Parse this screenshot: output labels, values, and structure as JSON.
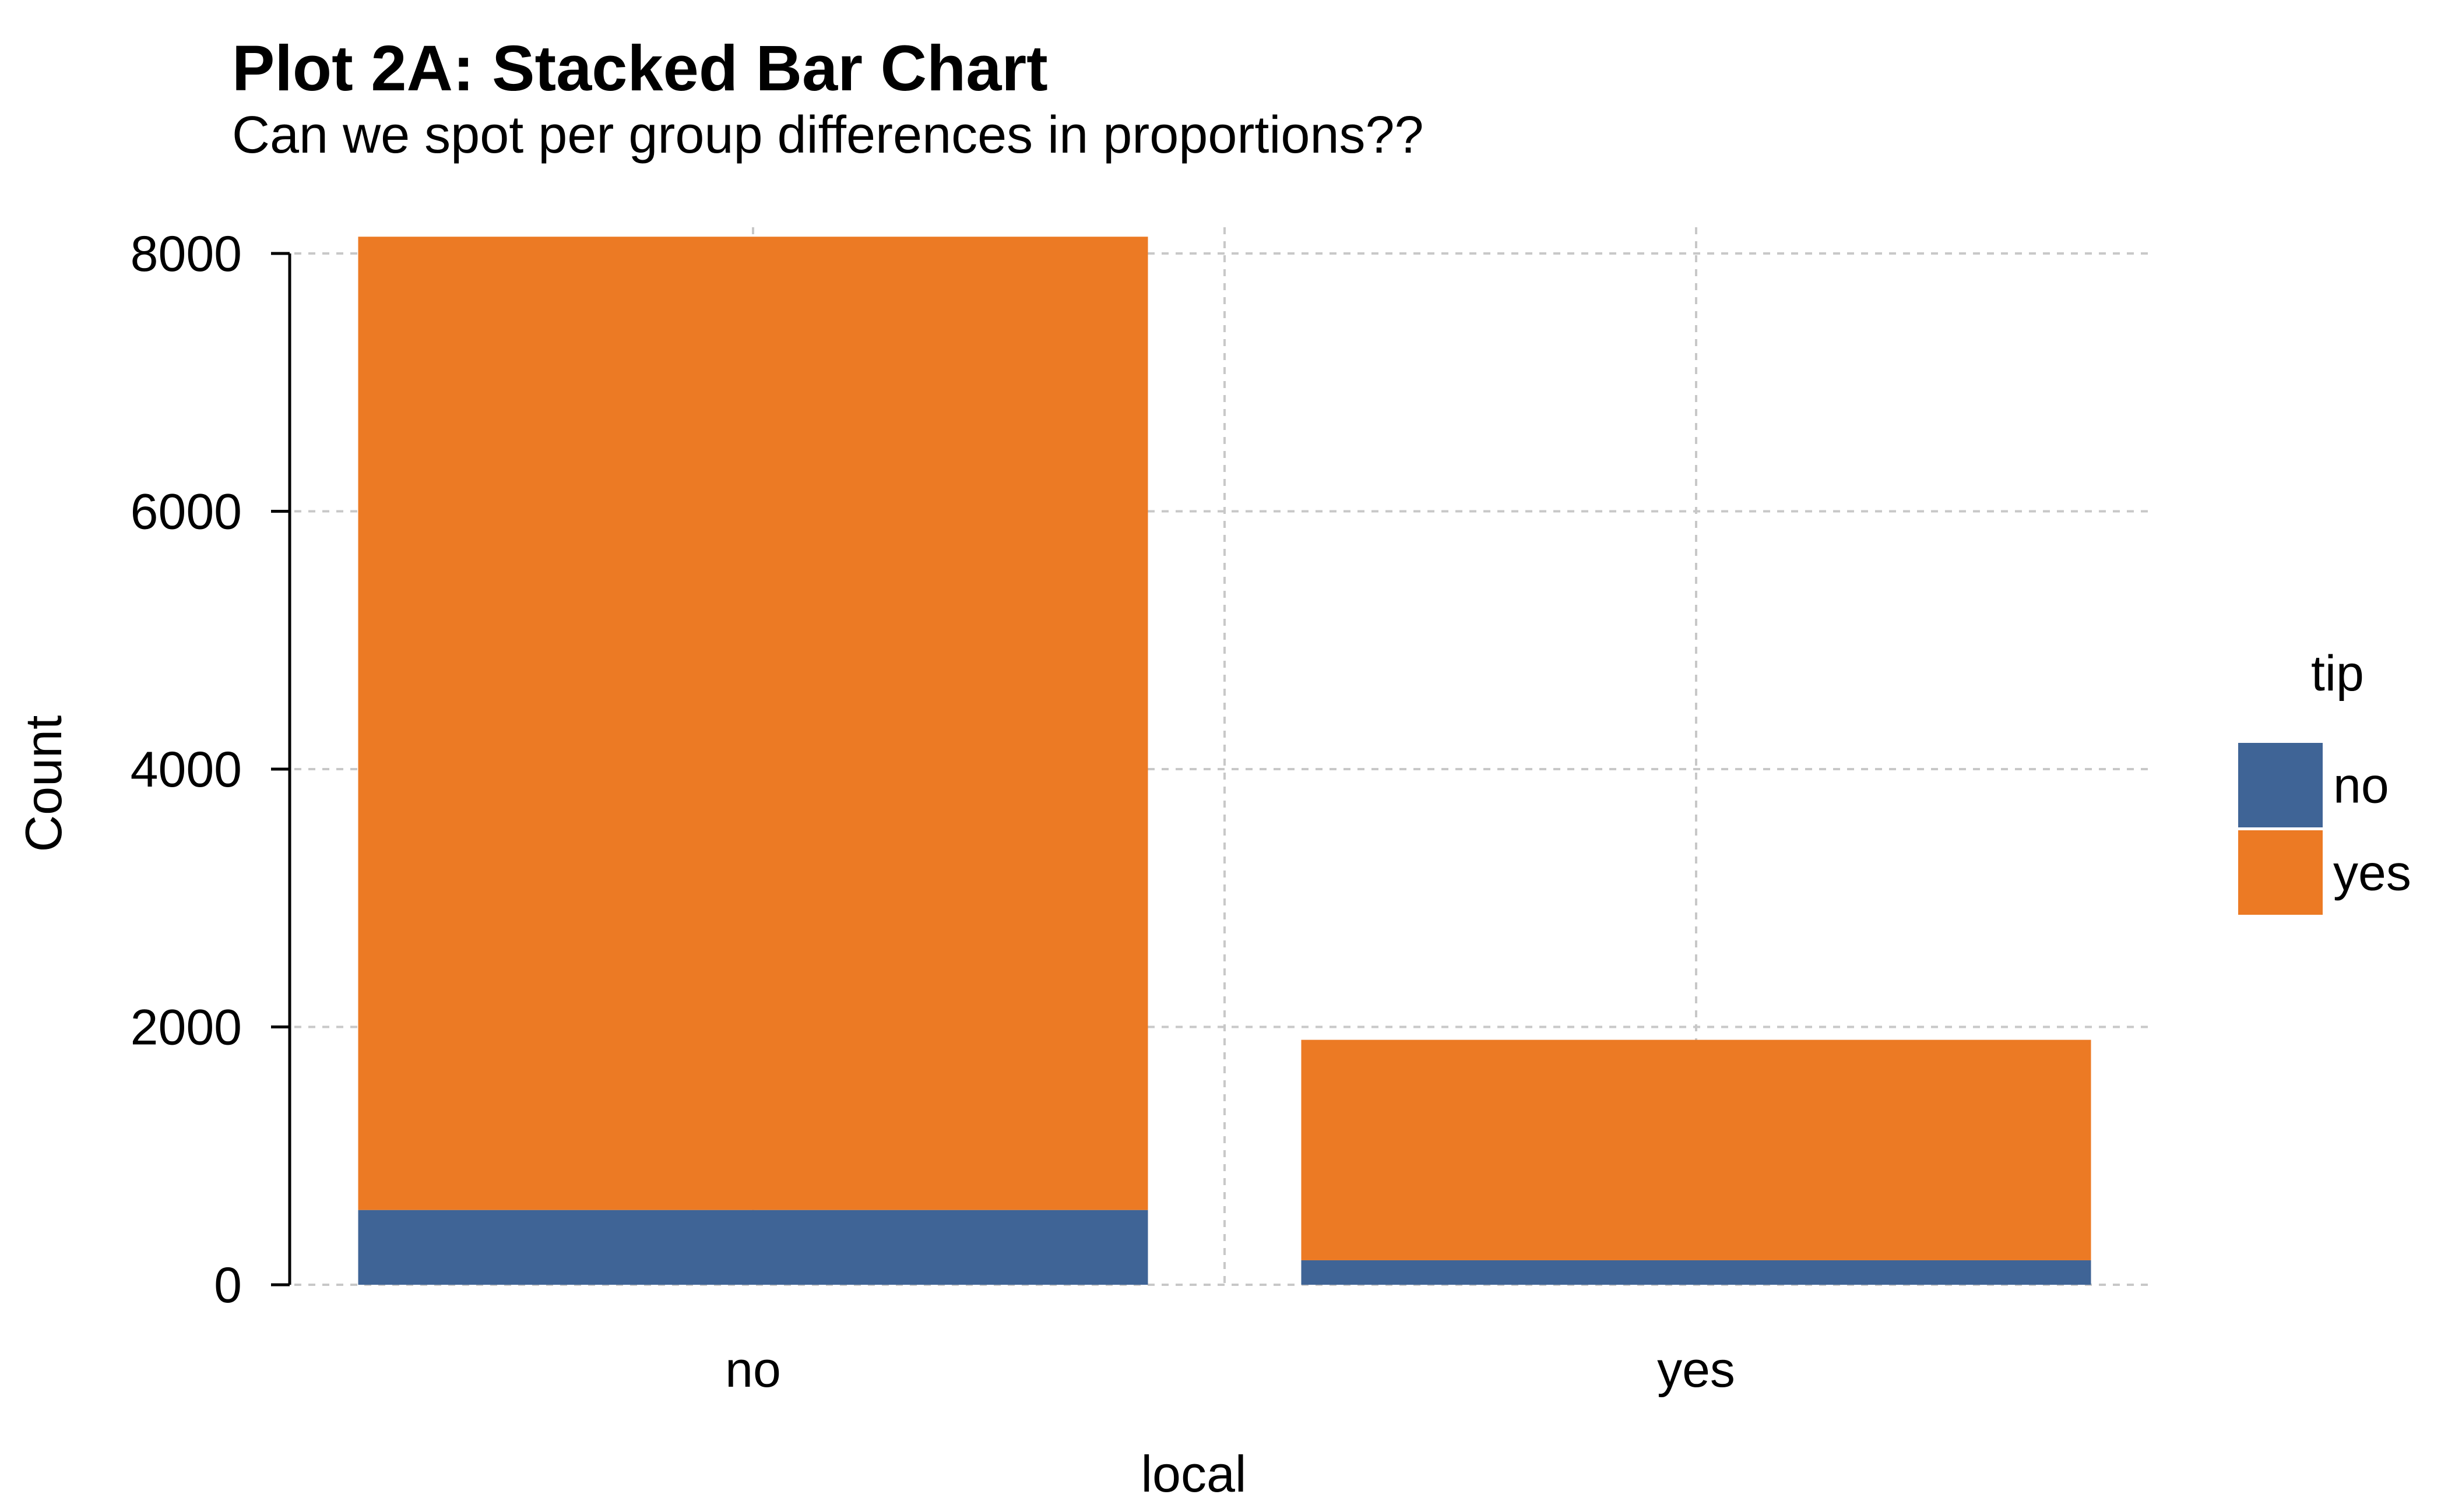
{
  "chart_data": {
    "type": "bar",
    "stacked": true,
    "title": "Plot 2A: Stacked Bar Chart",
    "subtitle": "Can we spot per group differences in proportions??",
    "xlabel": "local",
    "ylabel": "Count",
    "categories": [
      "no",
      "yes"
    ],
    "series": [
      {
        "name": "no",
        "values": [
          580,
          190
        ],
        "color": "#3F6496"
      },
      {
        "name": "yes",
        "values": [
          7550,
          1710
        ],
        "color": "#EC7A24"
      }
    ],
    "yticks": [
      "0",
      "2000",
      "4000",
      "6000",
      "8000"
    ],
    "ylim": [
      0,
      8000
    ],
    "grid": true,
    "legend": {
      "title": "tip",
      "position": "right"
    }
  }
}
